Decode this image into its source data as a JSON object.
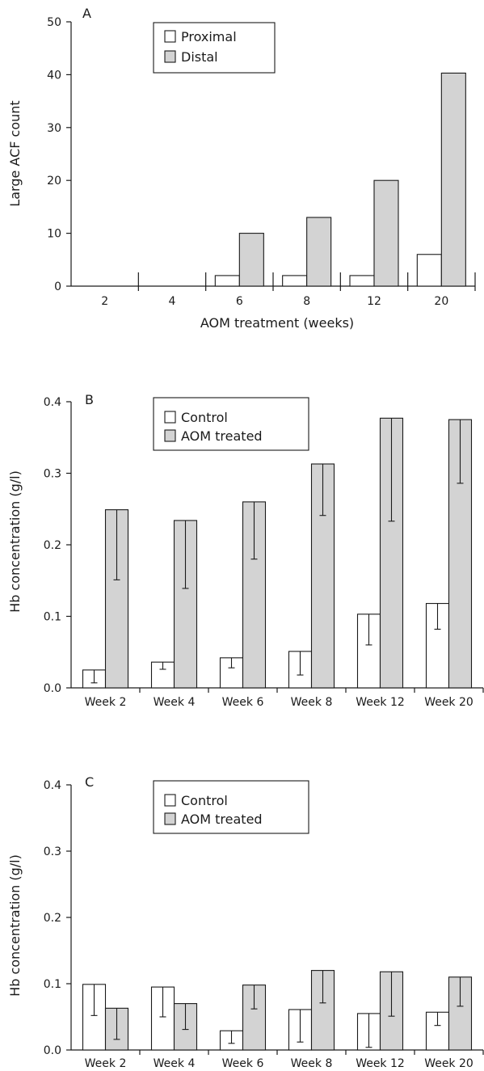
{
  "colors": {
    "open": "#ffffff",
    "filled": "#d3d3d3",
    "ink": "#1a1a1a"
  },
  "chart_data": [
    {
      "type": "bar",
      "panel": "A",
      "categories": [
        "2",
        "4",
        "6",
        "8",
        "12",
        "20"
      ],
      "series": [
        {
          "name": "Proximal",
          "values": [
            0,
            0,
            2,
            2,
            2,
            6
          ],
          "fill": "#ffffff"
        },
        {
          "name": "Distal",
          "values": [
            0,
            0,
            10,
            13,
            20,
            40.3
          ],
          "fill": "#d3d3d3"
        }
      ],
      "xlabel": "AOM treatment (weeks)",
      "ylabel": "Large ACF count",
      "ylim": [
        0,
        50
      ],
      "yticks": [
        "0",
        "10",
        "20",
        "30",
        "40",
        "50"
      ],
      "legend": "top-left",
      "grid": false
    },
    {
      "type": "bar",
      "panel": "B",
      "categories": [
        "Week 2",
        "Week 4",
        "Week 6",
        "Week 8",
        "Week 12",
        "Week 20"
      ],
      "series": [
        {
          "name": "Control",
          "values": [
            0.025,
            0.036,
            0.042,
            0.051,
            0.103,
            0.118
          ],
          "err_low": [
            0.007,
            0.026,
            0.028,
            0.018,
            0.06,
            0.082
          ],
          "fill": "#ffffff"
        },
        {
          "name": "AOM treated",
          "values": [
            0.249,
            0.234,
            0.26,
            0.313,
            0.377,
            0.375
          ],
          "err_low": [
            0.151,
            0.139,
            0.18,
            0.241,
            0.233,
            0.286
          ],
          "fill": "#d3d3d3"
        }
      ],
      "xlabel": "",
      "ylabel": "Hb concentration (g/l)",
      "ylim": [
        0,
        0.4
      ],
      "yticks": [
        "0.0",
        "0.1",
        "0.2",
        "0.3",
        "0.4"
      ],
      "legend": "top-left",
      "grid": false
    },
    {
      "type": "bar",
      "panel": "C",
      "categories": [
        "Week 2",
        "Week 4",
        "Week 6",
        "Week 8",
        "Week 12",
        "Week 20"
      ],
      "series": [
        {
          "name": "Control",
          "values": [
            0.099,
            0.095,
            0.029,
            0.061,
            0.055,
            0.057
          ],
          "err_low": [
            0.052,
            0.05,
            0.01,
            0.012,
            0.004,
            0.037
          ],
          "fill": "#ffffff"
        },
        {
          "name": "AOM treated",
          "values": [
            0.063,
            0.07,
            0.098,
            0.12,
            0.118,
            0.11
          ],
          "err_low": [
            0.016,
            0.031,
            0.062,
            0.071,
            0.051,
            0.066
          ],
          "fill": "#d3d3d3"
        }
      ],
      "xlabel": "",
      "ylabel": "Hb concentration (g/l)",
      "ylim": [
        0,
        0.4
      ],
      "yticks": [
        "0.0",
        "0.1",
        "0.2",
        "0.3",
        "0.4"
      ],
      "legend": "top-left",
      "grid": false
    }
  ]
}
